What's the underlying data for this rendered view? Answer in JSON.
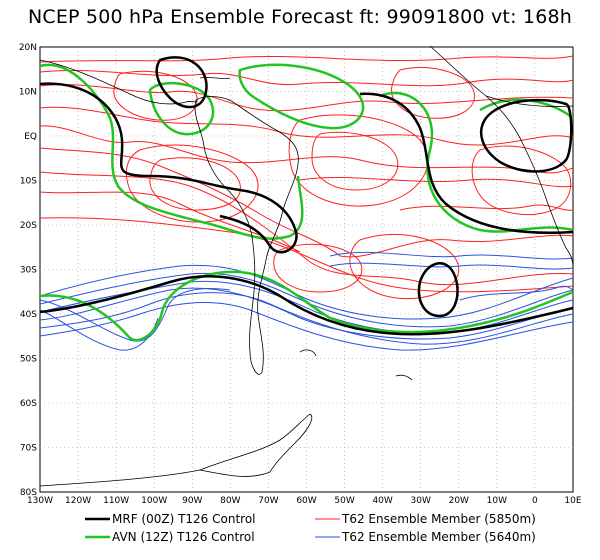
{
  "title": "NCEP 500 hPa Ensemble Forecast  ft: 99091800 vt: 168h",
  "axes": {
    "lat_labels": [
      "20N",
      "10N",
      "EQ",
      "10S",
      "20S",
      "30S",
      "40S",
      "50S",
      "60S",
      "70S",
      "80S"
    ],
    "lon_labels": [
      "130W",
      "120W",
      "110W",
      "100W",
      "90W",
      "80W",
      "70W",
      "60W",
      "50W",
      "40W",
      "30W",
      "20W",
      "10W",
      "0",
      "10E"
    ]
  },
  "legend": [
    {
      "label": "MRF (00Z) T126 Control",
      "color": "#000000"
    },
    {
      "label": "AVN (12Z) T126 Control",
      "color": "#22c422"
    },
    {
      "label": "T62 Ensemble Member (5850m)",
      "color": "#ff2020"
    },
    {
      "label": "T62 Ensemble Member (5640m)",
      "color": "#2a52e0"
    }
  ],
  "colors": {
    "mrf": "#000000",
    "avn": "#22c422",
    "member_5850": "#ff2020",
    "member_5640": "#2a52e0",
    "grid": "#9a9a9a",
    "coast": "#000000"
  }
}
